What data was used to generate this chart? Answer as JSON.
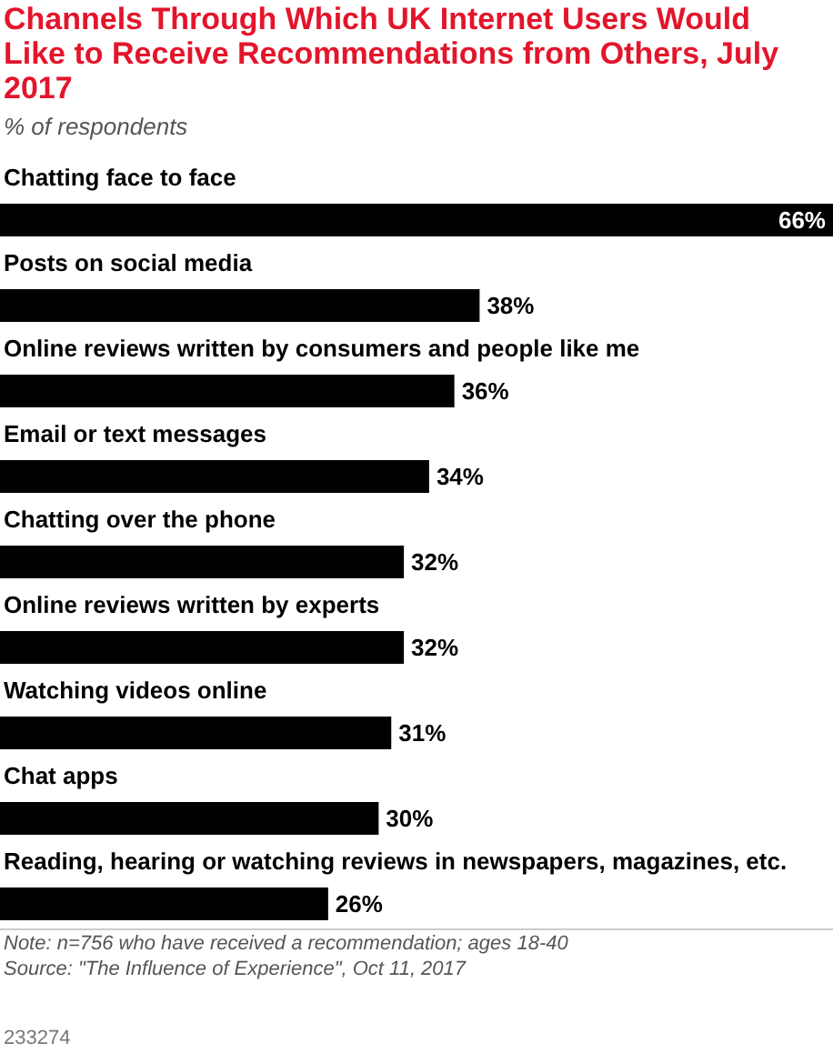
{
  "chart_data": {
    "type": "bar",
    "orientation": "horizontal",
    "title": "Channels Through Which UK Internet Users Would Like to Receive Recommendations from Others, July 2017",
    "subtitle": "% of respondents",
    "categories": [
      "Chatting face to face",
      "Posts on social media",
      "Online reviews written by consumers and people like me",
      "Email or text messages",
      "Chatting over the phone",
      "Online reviews written by experts",
      "Watching videos online",
      "Chat apps",
      "Reading, hearing or watching reviews in newspapers, magazines, etc."
    ],
    "values": [
      66,
      38,
      36,
      34,
      32,
      32,
      31,
      30,
      26
    ],
    "value_labels": [
      "66%",
      "38%",
      "36%",
      "34%",
      "32%",
      "32%",
      "31%",
      "30%",
      "26%"
    ],
    "color": "#000000",
    "annotations": [
      "Note: n=756 who have received a recommendation; ages 18-40",
      "Source: \"The Influence of Experience\", Oct 11, 2017",
      "233274"
    ]
  }
}
